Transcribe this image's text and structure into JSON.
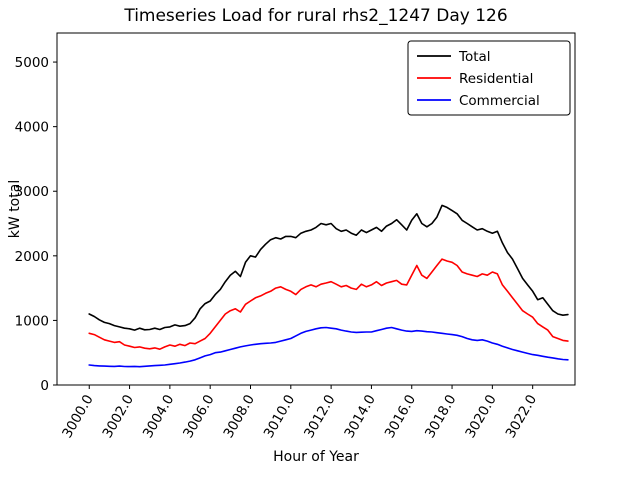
{
  "figure": {
    "background": "#ffffff",
    "text_color": "#000000"
  },
  "chart_data": {
    "type": "line",
    "title": "Timeseries Load for rural rhs2_1247  Day 126",
    "xlabel": "Hour of Year",
    "ylabel": "kW total",
    "xlim": [
      2998.4,
      3024.1
    ],
    "ylim": [
      0,
      5450
    ],
    "grid": false,
    "legend_position": "upper right",
    "xticks": {
      "values": [
        3000,
        3002,
        3004,
        3006,
        3008,
        3010,
        3012,
        3014,
        3016,
        3018,
        3020,
        3022
      ],
      "labels": [
        "3000.0",
        "3002.0",
        "3004.0",
        "3006.0",
        "3008.0",
        "3010.0",
        "3012.0",
        "3014.0",
        "3016.0",
        "3018.0",
        "3020.0",
        "3022.0"
      ]
    },
    "yticks": {
      "values": [
        0,
        1000,
        2000,
        3000,
        4000,
        5000
      ],
      "labels": [
        "0",
        "1000",
        "2000",
        "3000",
        "4000",
        "5000"
      ]
    },
    "x": [
      3000.0,
      3000.25,
      3000.5,
      3000.75,
      3001.0,
      3001.25,
      3001.5,
      3001.75,
      3002.0,
      3002.25,
      3002.5,
      3002.75,
      3003.0,
      3003.25,
      3003.5,
      3003.75,
      3004.0,
      3004.25,
      3004.5,
      3004.75,
      3005.0,
      3005.25,
      3005.5,
      3005.75,
      3006.0,
      3006.25,
      3006.5,
      3006.75,
      3007.0,
      3007.25,
      3007.5,
      3007.75,
      3008.0,
      3008.25,
      3008.5,
      3008.75,
      3009.0,
      3009.25,
      3009.5,
      3009.75,
      3010.0,
      3010.25,
      3010.5,
      3010.75,
      3011.0,
      3011.25,
      3011.5,
      3011.75,
      3012.0,
      3012.25,
      3012.5,
      3012.75,
      3013.0,
      3013.25,
      3013.5,
      3013.75,
      3014.0,
      3014.25,
      3014.5,
      3014.75,
      3015.0,
      3015.25,
      3015.5,
      3015.75,
      3016.0,
      3016.25,
      3016.5,
      3016.75,
      3017.0,
      3017.25,
      3017.5,
      3017.75,
      3018.0,
      3018.25,
      3018.5,
      3018.75,
      3019.0,
      3019.25,
      3019.5,
      3019.75,
      3020.0,
      3020.25,
      3020.5,
      3020.75,
      3021.0,
      3021.25,
      3021.5,
      3021.75,
      3022.0,
      3022.25,
      3022.5,
      3022.75,
      3023.0,
      3023.25,
      3023.5,
      3023.75
    ],
    "series": [
      {
        "name": "Total",
        "color": "#000000",
        "values": [
          1100,
          1060,
          1010,
          970,
          950,
          920,
          900,
          880,
          870,
          850,
          880,
          855,
          860,
          880,
          860,
          890,
          900,
          930,
          910,
          920,
          950,
          1040,
          1180,
          1260,
          1300,
          1400,
          1480,
          1600,
          1700,
          1760,
          1680,
          1900,
          2000,
          1980,
          2100,
          2180,
          2250,
          2280,
          2260,
          2300,
          2300,
          2280,
          2350,
          2380,
          2400,
          2440,
          2500,
          2480,
          2500,
          2420,
          2380,
          2400,
          2350,
          2320,
          2400,
          2360,
          2400,
          2440,
          2380,
          2460,
          2500,
          2560,
          2480,
          2400,
          2550,
          2650,
          2500,
          2450,
          2500,
          2600,
          2780,
          2750,
          2700,
          2650,
          2550,
          2500,
          2450,
          2400,
          2420,
          2380,
          2350,
          2380,
          2200,
          2050,
          1950,
          1800,
          1650,
          1550,
          1450,
          1320,
          1350,
          1250,
          1150,
          1100,
          1080,
          1090
        ]
      },
      {
        "name": "Residential",
        "color": "#ff0000",
        "values": [
          800,
          780,
          740,
          700,
          680,
          660,
          670,
          620,
          600,
          580,
          590,
          570,
          560,
          575,
          555,
          590,
          620,
          600,
          630,
          610,
          650,
          640,
          680,
          720,
          800,
          900,
          1000,
          1100,
          1150,
          1180,
          1130,
          1250,
          1300,
          1350,
          1380,
          1420,
          1450,
          1500,
          1520,
          1480,
          1450,
          1400,
          1480,
          1520,
          1550,
          1520,
          1560,
          1580,
          1600,
          1560,
          1520,
          1540,
          1500,
          1480,
          1560,
          1520,
          1550,
          1600,
          1540,
          1580,
          1600,
          1620,
          1560,
          1550,
          1700,
          1850,
          1700,
          1650,
          1750,
          1850,
          1950,
          1920,
          1900,
          1850,
          1750,
          1720,
          1700,
          1680,
          1720,
          1700,
          1750,
          1720,
          1550,
          1450,
          1350,
          1250,
          1150,
          1100,
          1050,
          950,
          900,
          850,
          750,
          720,
          690,
          680
        ]
      },
      {
        "name": "Commercial",
        "color": "#0000ff",
        "values": [
          310,
          300,
          295,
          292,
          290,
          288,
          292,
          287,
          285,
          288,
          284,
          290,
          295,
          300,
          305,
          310,
          320,
          330,
          340,
          355,
          370,
          390,
          420,
          450,
          470,
          500,
          510,
          530,
          550,
          570,
          590,
          605,
          620,
          630,
          640,
          645,
          650,
          660,
          680,
          700,
          720,
          760,
          800,
          830,
          850,
          870,
          885,
          890,
          880,
          870,
          850,
          835,
          820,
          815,
          818,
          820,
          820,
          840,
          860,
          880,
          890,
          870,
          850,
          835,
          830,
          840,
          835,
          825,
          820,
          810,
          800,
          790,
          780,
          770,
          750,
          720,
          700,
          690,
          700,
          680,
          650,
          630,
          600,
          575,
          550,
          530,
          510,
          490,
          470,
          460,
          445,
          430,
          420,
          405,
          395,
          390
        ]
      }
    ]
  }
}
